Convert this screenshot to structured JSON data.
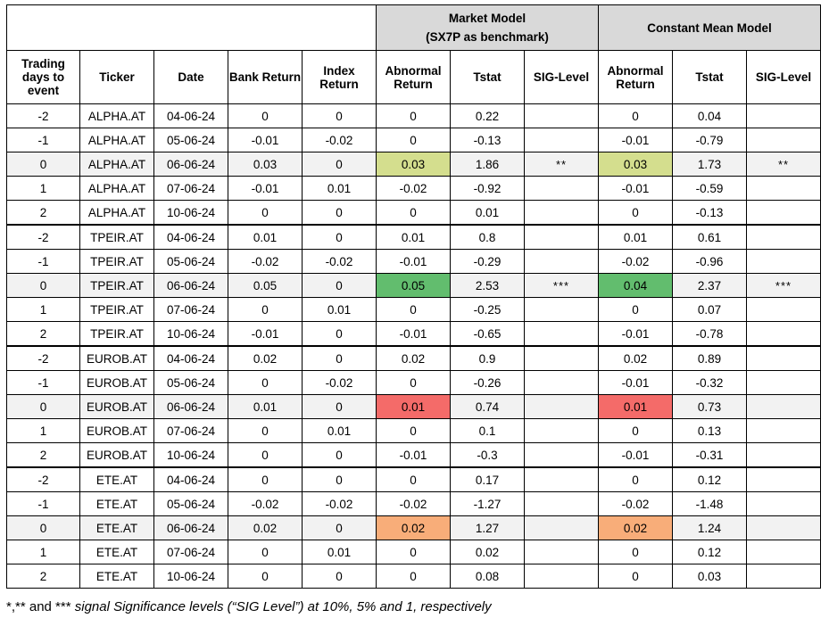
{
  "group_headers": {
    "market_model_line1": "Market Model",
    "market_model_line2": "(SX7P as benchmark)",
    "constant_mean_model": "Constant Mean Model"
  },
  "columns": [
    "Trading days to event",
    "Ticker",
    "Date",
    "Bank Return",
    "Index Return",
    "Abnormal Return",
    "Tstat",
    "SIG-Level",
    "Abnormal Return",
    "Tstat",
    "SIG-Level"
  ],
  "rows": [
    {
      "day": "-2",
      "ticker": "ALPHA.AT",
      "date": "04-06-24",
      "bank": "0",
      "index": "0",
      "mm_ar": "0",
      "mm_t": "0.22",
      "mm_sig": "",
      "cm_ar": "0",
      "cm_t": "0.04",
      "cm_sig": ""
    },
    {
      "day": "-1",
      "ticker": "ALPHA.AT",
      "date": "05-06-24",
      "bank": "-0.01",
      "index": "-0.02",
      "mm_ar": "0",
      "mm_t": "-0.13",
      "mm_sig": "",
      "cm_ar": "-0.01",
      "cm_t": "-0.79",
      "cm_sig": ""
    },
    {
      "day": "0",
      "ticker": "ALPHA.AT",
      "date": "06-06-24",
      "bank": "0.03",
      "index": "0",
      "mm_ar": "0.03",
      "mm_t": "1.86",
      "mm_sig": "**",
      "cm_ar": "0.03",
      "cm_t": "1.73",
      "cm_sig": "**",
      "highlight": "#d4de8e"
    },
    {
      "day": "1",
      "ticker": "ALPHA.AT",
      "date": "07-06-24",
      "bank": "-0.01",
      "index": "0.01",
      "mm_ar": "-0.02",
      "mm_t": "-0.92",
      "mm_sig": "",
      "cm_ar": "-0.01",
      "cm_t": "-0.59",
      "cm_sig": ""
    },
    {
      "day": "2",
      "ticker": "ALPHA.AT",
      "date": "10-06-24",
      "bank": "0",
      "index": "0",
      "mm_ar": "0",
      "mm_t": "0.01",
      "mm_sig": "",
      "cm_ar": "0",
      "cm_t": "-0.13",
      "cm_sig": ""
    },
    {
      "day": "-2",
      "ticker": "TPEIR.AT",
      "date": "04-06-24",
      "bank": "0.01",
      "index": "0",
      "mm_ar": "0.01",
      "mm_t": "0.8",
      "mm_sig": "",
      "cm_ar": "0.01",
      "cm_t": "0.61",
      "cm_sig": ""
    },
    {
      "day": "-1",
      "ticker": "TPEIR.AT",
      "date": "05-06-24",
      "bank": "-0.02",
      "index": "-0.02",
      "mm_ar": "-0.01",
      "mm_t": "-0.29",
      "mm_sig": "",
      "cm_ar": "-0.02",
      "cm_t": "-0.96",
      "cm_sig": ""
    },
    {
      "day": "0",
      "ticker": "TPEIR.AT",
      "date": "06-06-24",
      "bank": "0.05",
      "index": "0",
      "mm_ar": "0.05",
      "mm_t": "2.53",
      "mm_sig": "***",
      "cm_ar": "0.04",
      "cm_t": "2.37",
      "cm_sig": "***",
      "highlight": "#62bd6e"
    },
    {
      "day": "1",
      "ticker": "TPEIR.AT",
      "date": "07-06-24",
      "bank": "0",
      "index": "0.01",
      "mm_ar": "0",
      "mm_t": "-0.25",
      "mm_sig": "",
      "cm_ar": "0",
      "cm_t": "0.07",
      "cm_sig": ""
    },
    {
      "day": "2",
      "ticker": "TPEIR.AT",
      "date": "10-06-24",
      "bank": "-0.01",
      "index": "0",
      "mm_ar": "-0.01",
      "mm_t": "-0.65",
      "mm_sig": "",
      "cm_ar": "-0.01",
      "cm_t": "-0.78",
      "cm_sig": ""
    },
    {
      "day": "-2",
      "ticker": "EUROB.AT",
      "date": "04-06-24",
      "bank": "0.02",
      "index": "0",
      "mm_ar": "0.02",
      "mm_t": "0.9",
      "mm_sig": "",
      "cm_ar": "0.02",
      "cm_t": "0.89",
      "cm_sig": ""
    },
    {
      "day": "-1",
      "ticker": "EUROB.AT",
      "date": "05-06-24",
      "bank": "0",
      "index": "-0.02",
      "mm_ar": "0",
      "mm_t": "-0.26",
      "mm_sig": "",
      "cm_ar": "-0.01",
      "cm_t": "-0.32",
      "cm_sig": ""
    },
    {
      "day": "0",
      "ticker": "EUROB.AT",
      "date": "06-06-24",
      "bank": "0.01",
      "index": "0",
      "mm_ar": "0.01",
      "mm_t": "0.74",
      "mm_sig": "",
      "cm_ar": "0.01",
      "cm_t": "0.73",
      "cm_sig": "",
      "highlight": "#f46b69"
    },
    {
      "day": "1",
      "ticker": "EUROB.AT",
      "date": "07-06-24",
      "bank": "0",
      "index": "0.01",
      "mm_ar": "0",
      "mm_t": "0.1",
      "mm_sig": "",
      "cm_ar": "0",
      "cm_t": "0.13",
      "cm_sig": ""
    },
    {
      "day": "2",
      "ticker": "EUROB.AT",
      "date": "10-06-24",
      "bank": "0",
      "index": "0",
      "mm_ar": "-0.01",
      "mm_t": "-0.3",
      "mm_sig": "",
      "cm_ar": "-0.01",
      "cm_t": "-0.31",
      "cm_sig": ""
    },
    {
      "day": "-2",
      "ticker": "ETE.AT",
      "date": "04-06-24",
      "bank": "0",
      "index": "0",
      "mm_ar": "0",
      "mm_t": "0.17",
      "mm_sig": "",
      "cm_ar": "0",
      "cm_t": "0.12",
      "cm_sig": ""
    },
    {
      "day": "-1",
      "ticker": "ETE.AT",
      "date": "05-06-24",
      "bank": "-0.02",
      "index": "-0.02",
      "mm_ar": "-0.02",
      "mm_t": "-1.27",
      "mm_sig": "",
      "cm_ar": "-0.02",
      "cm_t": "-1.48",
      "cm_sig": ""
    },
    {
      "day": "0",
      "ticker": "ETE.AT",
      "date": "06-06-24",
      "bank": "0.02",
      "index": "0",
      "mm_ar": "0.02",
      "mm_t": "1.27",
      "mm_sig": "",
      "cm_ar": "0.02",
      "cm_t": "1.24",
      "cm_sig": "",
      "highlight": "#f8ad79"
    },
    {
      "day": "1",
      "ticker": "ETE.AT",
      "date": "07-06-24",
      "bank": "0",
      "index": "0.01",
      "mm_ar": "0",
      "mm_t": "0.02",
      "mm_sig": "",
      "cm_ar": "0",
      "cm_t": "0.12",
      "cm_sig": ""
    },
    {
      "day": "2",
      "ticker": "ETE.AT",
      "date": "10-06-24",
      "bank": "0",
      "index": "0",
      "mm_ar": "0",
      "mm_t": "0.08",
      "mm_sig": "",
      "cm_ar": "0",
      "cm_t": "0.03",
      "cm_sig": ""
    }
  ],
  "footnote": {
    "prefix": "*,** and *** ",
    "italic": "signal Significance levels (“SIG Level”) at 10%, 5% and 1, respectively"
  }
}
